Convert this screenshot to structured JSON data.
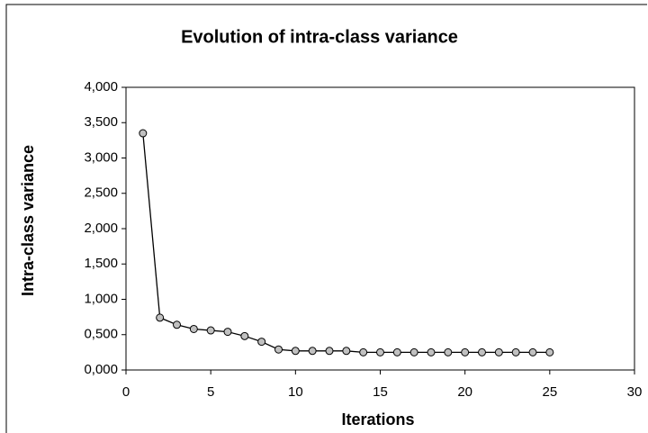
{
  "chart_data": {
    "type": "line",
    "title": "Evolution of intra-class variance",
    "x_label": "Iterations",
    "y_label": "Intra-class variance",
    "x": [
      1,
      2,
      3,
      4,
      5,
      6,
      7,
      8,
      9,
      10,
      11,
      12,
      13,
      14,
      15,
      16,
      17,
      18,
      19,
      20,
      21,
      22,
      23,
      24,
      25
    ],
    "series": [
      {
        "name": "Intra-class variance",
        "color": "#000000",
        "marker_color": "#c0c0c0",
        "values": [
          3.35,
          0.74,
          0.64,
          0.58,
          0.56,
          0.54,
          0.48,
          0.4,
          0.29,
          0.27,
          0.27,
          0.27,
          0.27,
          0.25,
          0.25,
          0.25,
          0.25,
          0.25,
          0.25,
          0.25,
          0.25,
          0.25,
          0.25,
          0.25,
          0.25
        ]
      }
    ],
    "xlim": [
      0,
      30
    ],
    "xticks": [
      0,
      5,
      10,
      15,
      20,
      25,
      30
    ],
    "ylim": [
      0,
      4
    ],
    "yticks": [
      {
        "value": 0,
        "label": "0,000"
      },
      {
        "value": 0.5,
        "label": "0,500"
      },
      {
        "value": 1,
        "label": "1,000"
      },
      {
        "value": 1.5,
        "label": "1,500"
      },
      {
        "value": 2,
        "label": "2,000"
      },
      {
        "value": 2.5,
        "label": "2,500"
      },
      {
        "value": 3,
        "label": "3,000"
      },
      {
        "value": 3.5,
        "label": "3,500"
      },
      {
        "value": 4,
        "label": "4,000"
      }
    ],
    "grid": false
  }
}
